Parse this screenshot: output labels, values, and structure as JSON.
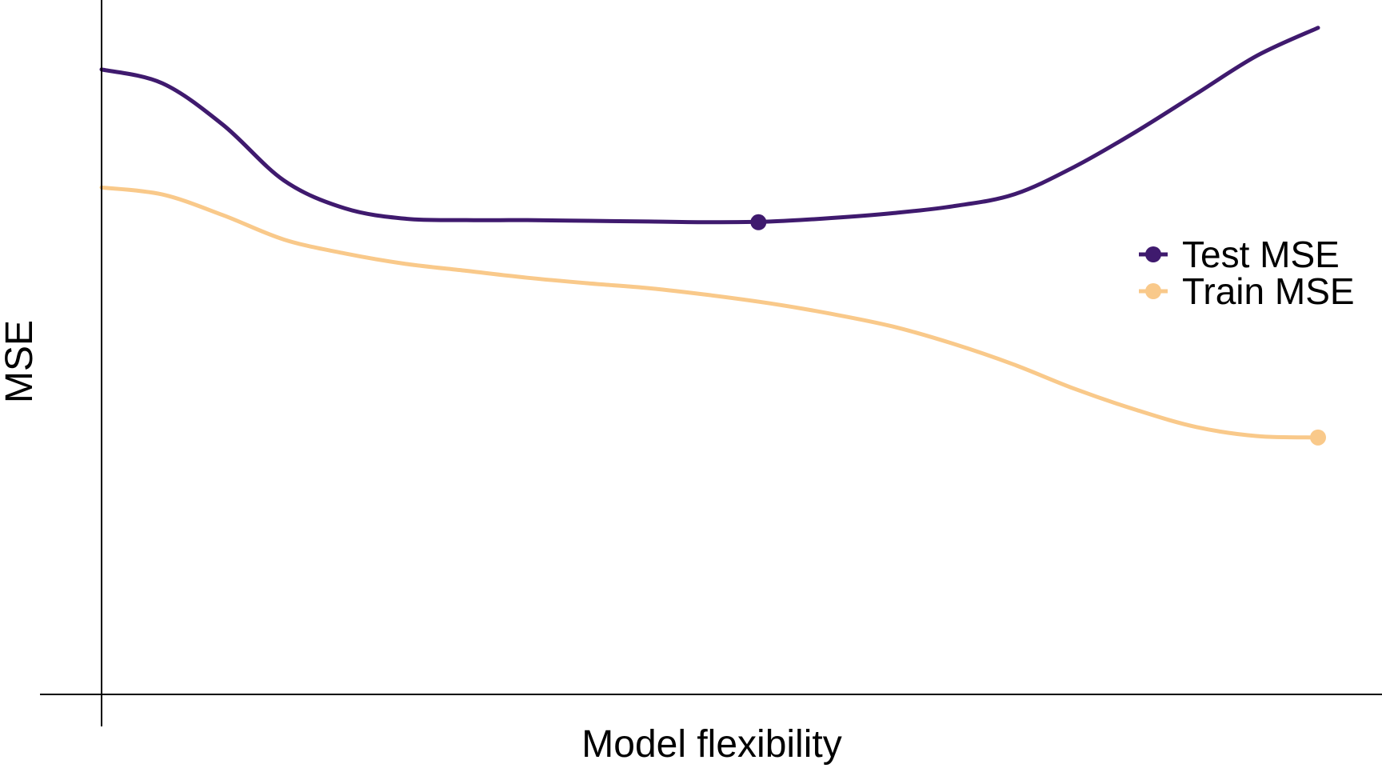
{
  "chart_data": {
    "type": "line",
    "xlabel": "Model flexibility",
    "ylabel": "MSE",
    "title": "",
    "xlim": [
      0,
      1
    ],
    "ylim": [
      0,
      1
    ],
    "grid": false,
    "axis_ticks": false,
    "legend_position": "right",
    "x": [
      0,
      0.05,
      0.1,
      0.15,
      0.2,
      0.25,
      0.3,
      0.35,
      0.4,
      0.45,
      0.5,
      0.55,
      0.6,
      0.65,
      0.7,
      0.75,
      0.8,
      0.85,
      0.9,
      0.95,
      1.0
    ],
    "series": [
      {
        "name": "Test MSE",
        "color": "#3f1a6e",
        "values": [
          0.9,
          0.88,
          0.82,
          0.74,
          0.7,
          0.685,
          0.683,
          0.683,
          0.682,
          0.681,
          0.68,
          0.681,
          0.686,
          0.693,
          0.703,
          0.72,
          0.76,
          0.81,
          0.865,
          0.92,
          0.96
        ],
        "highlight": {
          "x": 0.54,
          "y": 0.68,
          "note": "minimum"
        }
      },
      {
        "name": "Train MSE",
        "color": "#f9c98a",
        "values": [
          0.73,
          0.72,
          0.69,
          0.655,
          0.635,
          0.62,
          0.61,
          0.6,
          0.592,
          0.585,
          0.575,
          0.563,
          0.548,
          0.53,
          0.505,
          0.475,
          0.44,
          0.41,
          0.385,
          0.372,
          0.37
        ],
        "highlight": {
          "x": 1.0,
          "y": 0.37,
          "note": "minimum"
        }
      }
    ]
  }
}
